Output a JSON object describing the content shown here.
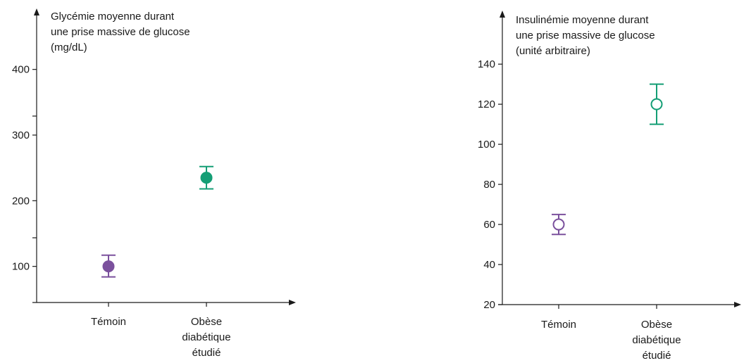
{
  "chart_data": [
    {
      "type": "scatter",
      "title_lines": [
        "Glycémie moyenne durant",
        "une prise massive de glucose",
        "(mg/dL)"
      ],
      "categories": [
        {
          "lines": [
            "Témoin"
          ]
        },
        {
          "lines": [
            "Obèse",
            "diabétique",
            "étudié"
          ]
        }
      ],
      "yticks": [
        100,
        200,
        300,
        400
      ],
      "ylim": [
        45,
        480
      ],
      "points": [
        {
          "category": 0,
          "y": 100,
          "err_low": 84,
          "err_high": 117,
          "color": "#7B519D",
          "filled": true
        },
        {
          "category": 1,
          "y": 235,
          "err_low": 218,
          "err_high": 252,
          "color": "#149E75",
          "filled": true
        }
      ]
    },
    {
      "type": "scatter",
      "title_lines": [
        "Insulinémie moyenne durant",
        "une prise massive de glucose",
        "(unité arbitraire)"
      ],
      "categories": [
        {
          "lines": [
            "Témoin"
          ]
        },
        {
          "lines": [
            "Obèse",
            "diabétique",
            "étudié"
          ]
        }
      ],
      "yticks": [
        20,
        40,
        60,
        80,
        100,
        120,
        140
      ],
      "ylim": [
        20,
        152
      ],
      "points": [
        {
          "category": 0,
          "y": 60,
          "err_low": 55,
          "err_high": 65,
          "color": "#7B519D",
          "filled": false
        },
        {
          "category": 1,
          "y": 120,
          "err_low": 110,
          "err_high": 130,
          "color": "#149E75",
          "filled": false
        }
      ]
    }
  ]
}
